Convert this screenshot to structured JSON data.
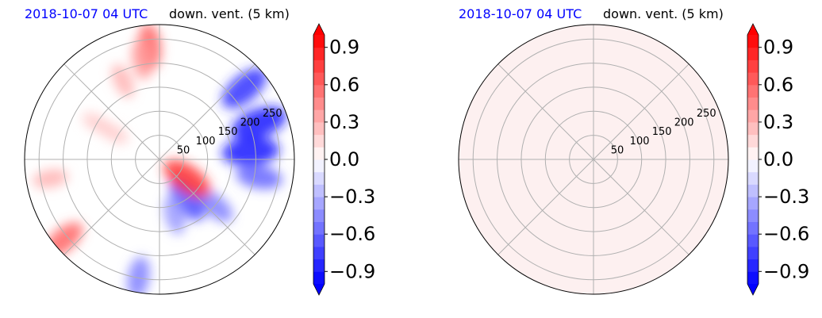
{
  "colors": {
    "date_text": "#0000ff",
    "grid": "#b0b0b0",
    "neutral_fill": "#fdf0f0",
    "positive": "#ff0000",
    "negative": "#0000ff"
  },
  "colorbar_levels": [
    -1.0,
    -0.9,
    -0.8,
    -0.7,
    -0.6,
    -0.5,
    -0.4,
    -0.3,
    -0.2,
    -0.1,
    0.0,
    0.1,
    0.2,
    0.3,
    0.4,
    0.5,
    0.6,
    0.7,
    0.8,
    0.9,
    1.0
  ],
  "chart_data": [
    {
      "type": "heatmap",
      "projection": "polar",
      "date_title": "2018-10-07 04 UTC",
      "var_title": "down. vent. (5 km)",
      "radial_ticks": [
        50,
        100,
        150,
        200,
        250
      ],
      "radial_lim": [
        0,
        280
      ],
      "spokes_deg": [
        0,
        45,
        90,
        135,
        180,
        225,
        270,
        315
      ],
      "colorbar": {
        "ticks": [
          "0.9",
          "0.6",
          "0.3",
          "0.0",
          "−0.3",
          "−0.6",
          "−0.9"
        ],
        "vmin": -1.0,
        "vmax": 1.0,
        "extend": "both"
      },
      "field": {
        "background_value": 0.0,
        "features": [
          {
            "r": 235,
            "az": 355,
            "value": 0.6
          },
          {
            "r": 210,
            "az": 350,
            "value": 0.4
          },
          {
            "r": 180,
            "az": 335,
            "value": 0.3
          },
          {
            "r": 150,
            "az": 300,
            "value": 0.2
          },
          {
            "r": 110,
            "az": 300,
            "value": 0.2
          },
          {
            "r": 230,
            "az": 50,
            "value": -0.8
          },
          {
            "r": 220,
            "az": 70,
            "value": -0.9
          },
          {
            "r": 190,
            "az": 85,
            "value": -0.9
          },
          {
            "r": 210,
            "az": 100,
            "value": -0.6
          },
          {
            "r": 150,
            "az": 130,
            "value": -0.5
          },
          {
            "r": 100,
            "az": 145,
            "value": -0.7
          },
          {
            "r": 120,
            "az": 165,
            "value": -0.4
          },
          {
            "r": 70,
            "az": 125,
            "value": 0.8
          },
          {
            "r": 250,
            "az": 190,
            "value": -0.5
          },
          {
            "r": 230,
            "az": 260,
            "value": 0.3
          },
          {
            "r": 260,
            "az": 230,
            "value": 0.6
          }
        ]
      }
    },
    {
      "type": "heatmap",
      "projection": "polar",
      "date_title": "2018-10-07 04 UTC",
      "var_title": "down. vent. (5 km)",
      "radial_ticks": [
        50,
        100,
        150,
        200,
        250
      ],
      "radial_lim": [
        0,
        280
      ],
      "spokes_deg": [
        0,
        45,
        90,
        135,
        180,
        225,
        270,
        315
      ],
      "colorbar": {
        "ticks": [
          "0.9",
          "0.6",
          "0.3",
          "0.0",
          "−0.3",
          "−0.6",
          "−0.9"
        ],
        "vmin": -1.0,
        "vmax": 1.0,
        "extend": "both"
      },
      "field": {
        "background_value": 0.05,
        "features": []
      }
    }
  ]
}
